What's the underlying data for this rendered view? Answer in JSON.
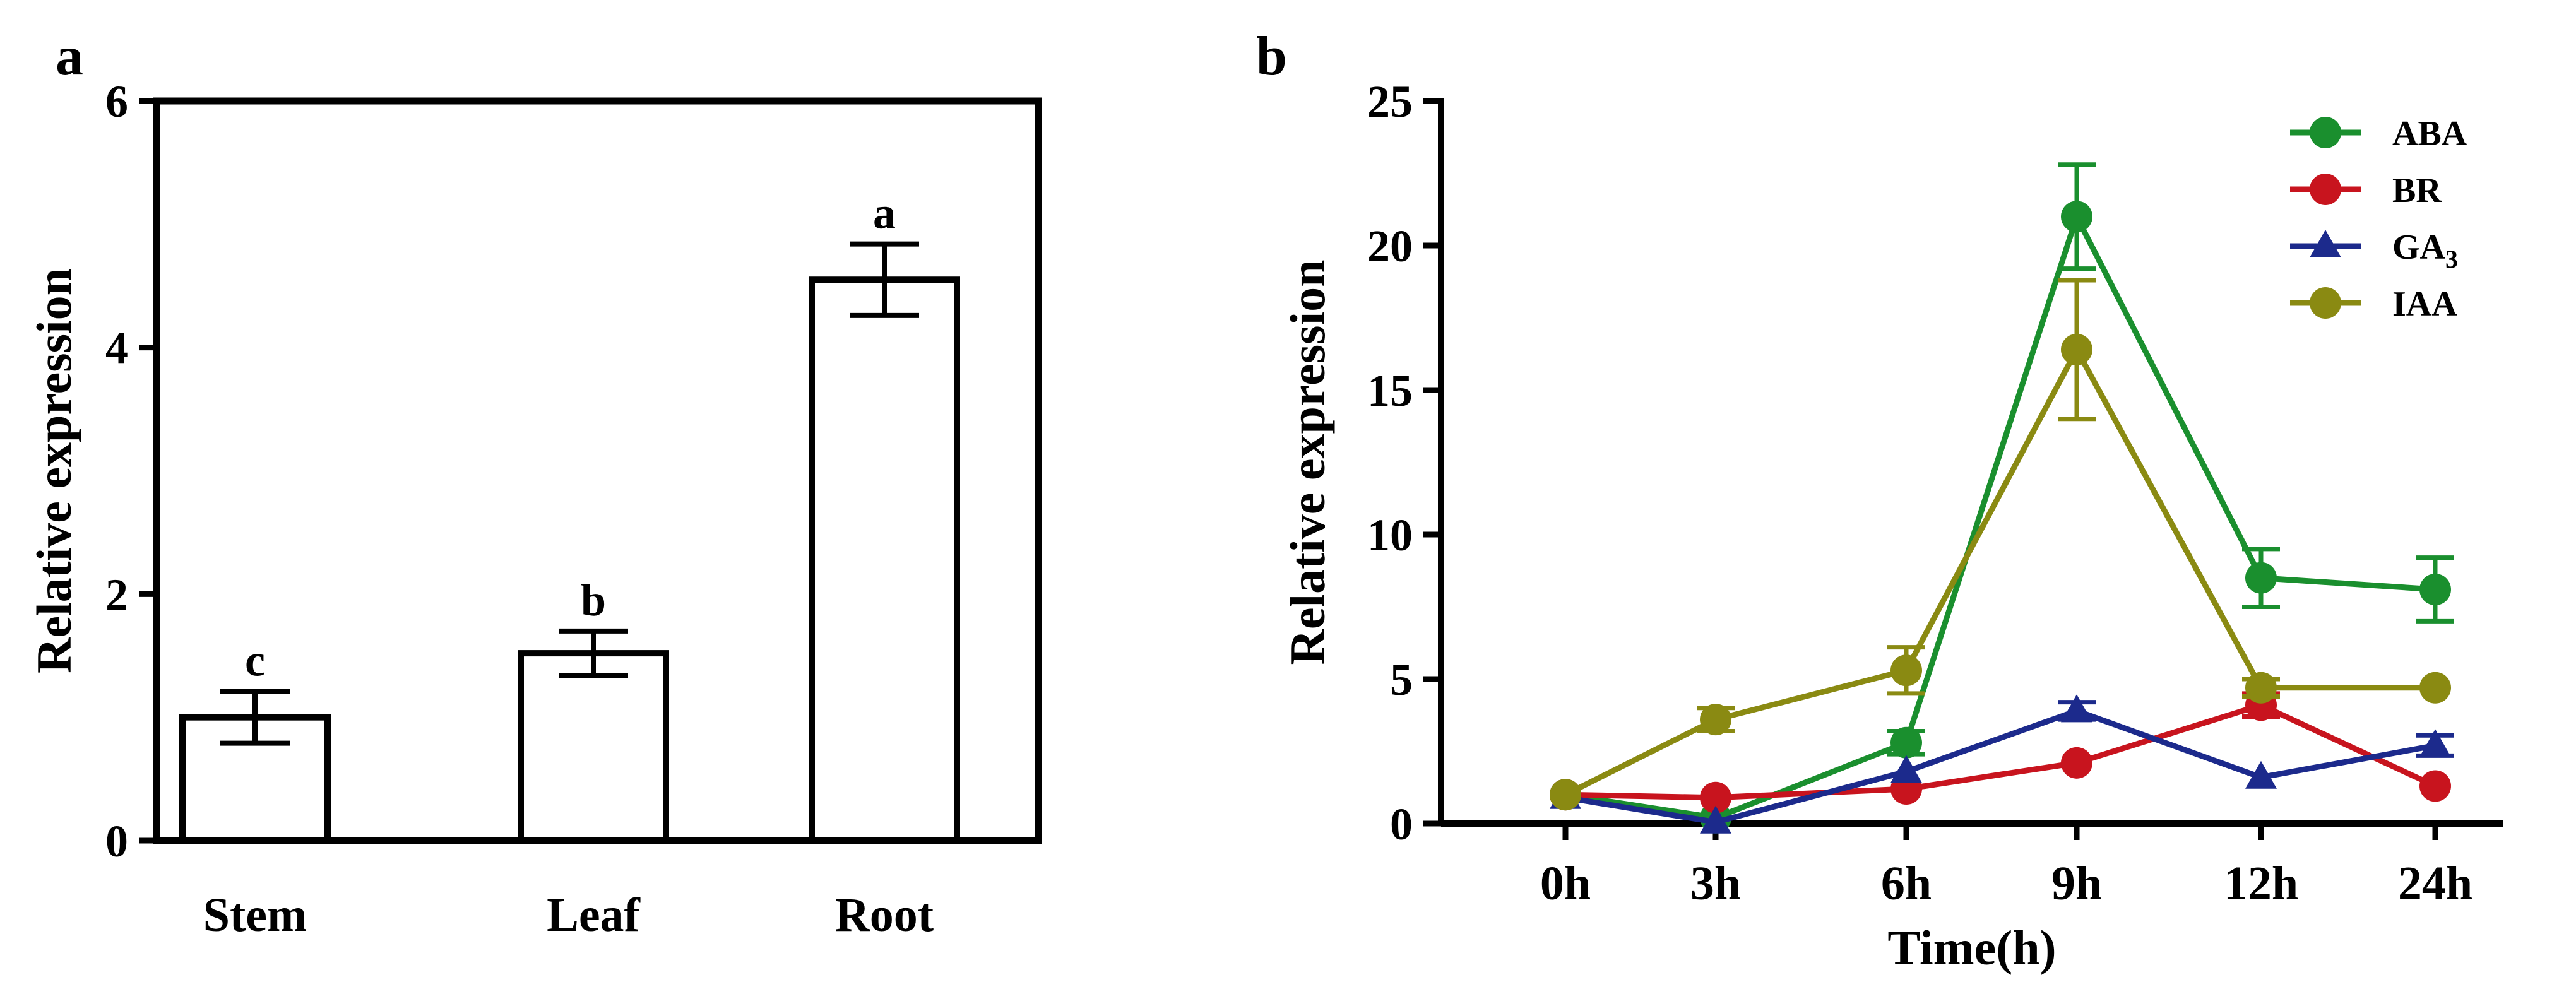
{
  "panels": [
    {
      "label": "a"
    },
    {
      "label": "b"
    }
  ],
  "chart_data": [
    {
      "type": "bar",
      "panel": "a",
      "categories": [
        "Stem",
        "Leaf",
        "Root"
      ],
      "values": [
        1.0,
        1.52,
        4.55
      ],
      "errors": [
        0.21,
        0.18,
        0.29
      ],
      "significance": [
        "c",
        "b",
        "a"
      ],
      "xlabel": "",
      "ylabel": "Relative expression",
      "ylim": [
        0,
        6
      ],
      "yticks": [
        0,
        2,
        4,
        6
      ],
      "bar_fill": "#ffffff",
      "bar_stroke": "#000000"
    },
    {
      "type": "line",
      "panel": "b",
      "categories": [
        "0h",
        "3h",
        "6h",
        "9h",
        "12h",
        "24h"
      ],
      "xlabel": "Time(h)",
      "ylabel": "Relative expression",
      "ylim": [
        0,
        25
      ],
      "yticks": [
        0,
        5,
        10,
        15,
        20,
        25
      ],
      "legend_position": "top-right",
      "series": [
        {
          "name": "ABA",
          "color": "#1a8f2e",
          "marker": "circle",
          "values": [
            1.0,
            0.2,
            2.8,
            21.0,
            8.5,
            8.1
          ],
          "errors": [
            0.15,
            0.1,
            0.4,
            1.8,
            1.0,
            1.1
          ]
        },
        {
          "name": "BR",
          "color": "#c8141e",
          "marker": "circle",
          "values": [
            1.0,
            0.9,
            1.2,
            2.1,
            4.1,
            1.3
          ],
          "errors": [
            0.1,
            0.1,
            0.15,
            0.2,
            0.4,
            0.15
          ]
        },
        {
          "name": "GA",
          "name_sub": "3",
          "color": "#1c2a8c",
          "marker": "triangle",
          "values": [
            0.9,
            0.05,
            1.8,
            3.9,
            1.6,
            2.7
          ],
          "errors": [
            0.1,
            0.05,
            0.2,
            0.3,
            0.2,
            0.35
          ]
        },
        {
          "name": "IAA",
          "color": "#8a8a12",
          "marker": "circle",
          "values": [
            1.0,
            3.6,
            5.3,
            16.4,
            4.7,
            4.7
          ],
          "errors": [
            0.1,
            0.4,
            0.8,
            2.4,
            0.3,
            0.2
          ]
        }
      ]
    }
  ]
}
